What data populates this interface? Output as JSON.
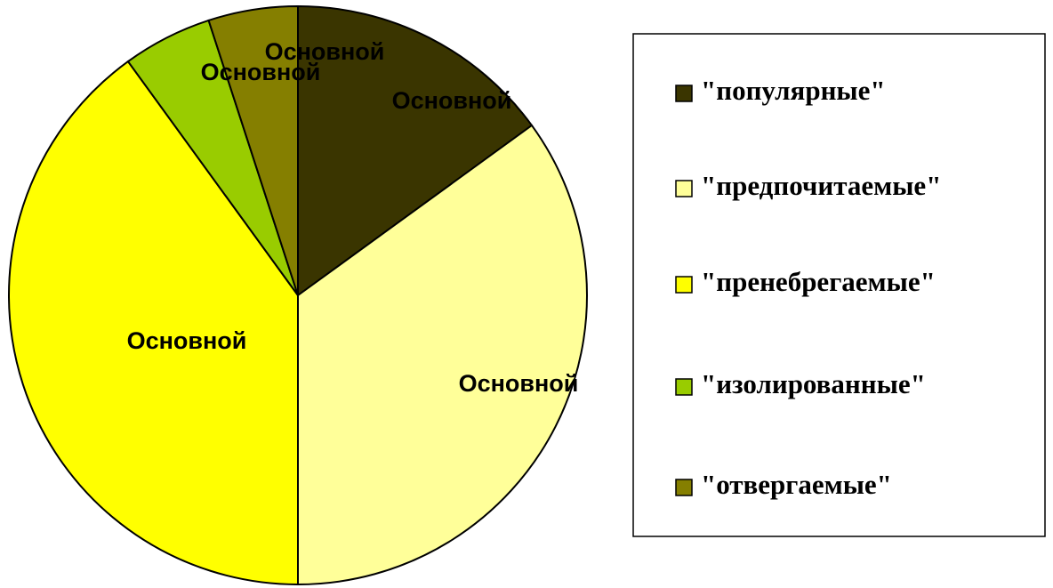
{
  "chart_data": {
    "type": "pie",
    "categories": [
      "\"популярные\"",
      "\"предпочитаемые\"",
      "\"пренебрегаемые\"",
      "\"изолированные\"",
      "\"отвергаемые\""
    ],
    "values": [
      15,
      35,
      40,
      5,
      5
    ],
    "data_labels": [
      "Основной",
      "Основной",
      "Основной",
      "Основной",
      "Основной"
    ],
    "colors": [
      "#3a3500",
      "#ffff99",
      "#ffff00",
      "#99cc00",
      "#857f00"
    ],
    "legend": "right"
  }
}
